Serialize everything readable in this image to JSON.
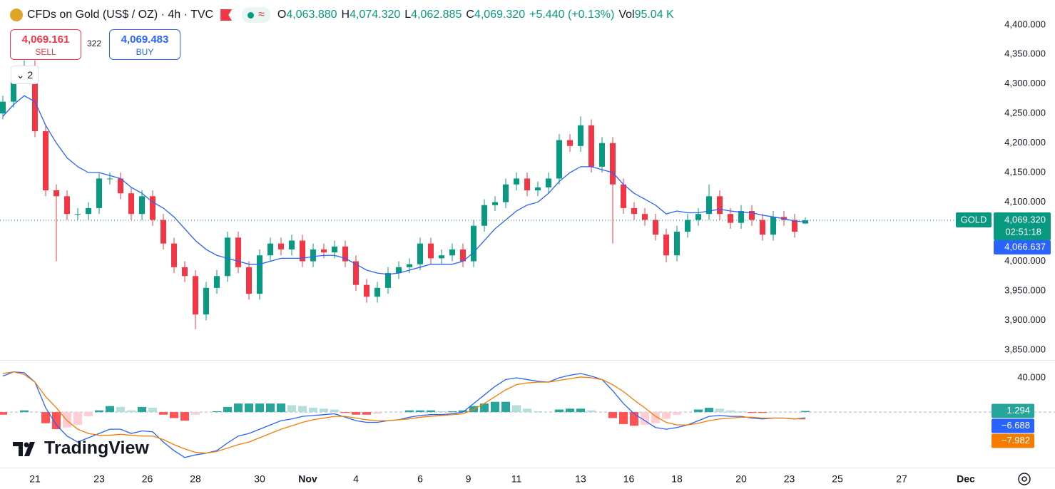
{
  "header": {
    "symbol": "CFDs on Gold (US$ / OZ) · 4h · TVC",
    "ohlc": [
      {
        "key": "O",
        "value": "4,063.880"
      },
      {
        "key": "H",
        "value": "4,074.320"
      },
      {
        "key": "L",
        "value": "4,062.885"
      },
      {
        "key": "C",
        "value": "4,069.320"
      }
    ],
    "change": "+5.440 (+0.13%)",
    "volume": {
      "key": "Vol",
      "value": "95.04 K"
    }
  },
  "trade": {
    "sell_price": "4,069.161",
    "sell": "SELL",
    "spread": "322",
    "buy_price": "4,069.483",
    "buy": "BUY"
  },
  "indicator_toggle": "2",
  "logo": "TradingView",
  "chart_data": [
    {
      "type": "candlestick",
      "x": [
        0,
        2,
        4,
        6,
        8,
        10,
        12,
        14,
        16,
        18,
        20,
        22,
        24,
        26,
        28,
        30,
        32,
        34,
        36,
        38,
        40,
        42,
        44,
        46,
        48,
        50,
        52,
        54,
        56,
        58,
        60,
        62,
        64,
        66,
        68,
        70,
        72,
        74,
        76,
        78,
        80,
        82,
        84,
        86,
        88,
        90,
        92,
        94,
        96,
        98,
        100,
        102,
        104,
        106,
        108,
        110,
        112,
        114,
        116,
        118,
        120,
        122,
        124,
        126,
        128,
        130,
        132,
        134,
        136,
        138,
        140,
        142,
        144,
        146,
        148,
        150
      ],
      "open": [
        4250,
        4270,
        4320,
        4330,
        4220,
        4120,
        4110,
        4080,
        4080,
        4090,
        4140,
        4140,
        4115,
        4080,
        4110,
        4070,
        4030,
        3990,
        3975,
        3910,
        3955,
        3975,
        4040,
        3990,
        3945,
        4010,
        4030,
        4020,
        4035,
        4000,
        4020,
        4015,
        4025,
        4000,
        3960,
        3940,
        3955,
        3980,
        3990,
        3995,
        4030,
        4005,
        4010,
        4020,
        4000,
        4060,
        4095,
        4100,
        4130,
        4140,
        4120,
        4125,
        4140,
        4205,
        4195,
        4230,
        4160,
        4200,
        4130,
        4090,
        4080,
        4070,
        4045,
        4010,
        4050,
        4070,
        4080,
        4110,
        4080,
        4065,
        4085,
        4070,
        4045,
        4075,
        4070,
        4063.88
      ],
      "high": [
        4280,
        4330,
        4340,
        4340,
        4230,
        4130,
        4120,
        4090,
        4100,
        4150,
        4150,
        4150,
        4125,
        4120,
        4120,
        4080,
        4040,
        4000,
        3985,
        3965,
        3985,
        4050,
        4050,
        4000,
        4020,
        4040,
        4040,
        4045,
        4045,
        4030,
        4030,
        4035,
        4035,
        4010,
        3970,
        3965,
        3990,
        4000,
        4005,
        4040,
        4040,
        4020,
        4030,
        4030,
        4070,
        4105,
        4110,
        4140,
        4150,
        4150,
        4135,
        4150,
        4215,
        4215,
        4245,
        4240,
        4210,
        4210,
        4140,
        4100,
        4090,
        4080,
        4055,
        4060,
        4080,
        4090,
        4130,
        4120,
        4090,
        4095,
        4095,
        4080,
        4085,
        4085,
        4080,
        4074.32
      ],
      "low": [
        4240,
        4260,
        4310,
        4210,
        4110,
        4000,
        4070,
        4070,
        4070,
        4080,
        4130,
        4105,
        4070,
        4070,
        4060,
        4020,
        3980,
        3965,
        3885,
        3900,
        3945,
        3965,
        3980,
        3935,
        3935,
        4000,
        4010,
        4010,
        3990,
        3990,
        4005,
        4005,
        3990,
        3950,
        3930,
        3930,
        3945,
        3970,
        3980,
        3985,
        3995,
        3995,
        4000,
        3990,
        3990,
        4050,
        4085,
        4090,
        4120,
        4110,
        4110,
        4115,
        4130,
        4185,
        4185,
        4150,
        4150,
        4030,
        4080,
        4070,
        4060,
        4035,
        3998,
        4000,
        4040,
        4060,
        4070,
        4070,
        4055,
        4055,
        4060,
        4035,
        4035,
        4060,
        4040,
        4062.885
      ],
      "close": [
        4270,
        4320,
        4330,
        4220,
        4120,
        4110,
        4080,
        4080,
        4090,
        4140,
        4140,
        4115,
        4080,
        4110,
        4070,
        4030,
        3990,
        3975,
        3910,
        3955,
        3975,
        4040,
        3990,
        3945,
        4010,
        4030,
        4020,
        4035,
        4000,
        4020,
        4015,
        4025,
        4000,
        3960,
        3940,
        3955,
        3980,
        3990,
        3995,
        4030,
        4005,
        4010,
        4020,
        4000,
        4060,
        4095,
        4100,
        4130,
        4140,
        4120,
        4125,
        4140,
        4205,
        4195,
        4230,
        4160,
        4200,
        4130,
        4090,
        4080,
        4070,
        4045,
        4010,
        4050,
        4070,
        4080,
        4110,
        4080,
        4065,
        4085,
        4070,
        4045,
        4075,
        4070,
        4050,
        4069.32
      ],
      "up_color": "#089981",
      "down_color": "#f23645",
      "ma": {
        "color": "#2962ff",
        "values": [
          4245,
          4265,
          4280,
          4270,
          4230,
          4200,
          4175,
          4160,
          4150,
          4150,
          4145,
          4140,
          4125,
          4115,
          4100,
          4090,
          4075,
          4055,
          4035,
          4020,
          4010,
          4005,
          4000,
          3995,
          3995,
          4000,
          4005,
          4005,
          4005,
          4008,
          4010,
          4010,
          4005,
          3995,
          3985,
          3980,
          3978,
          3980,
          3985,
          3990,
          3995,
          3995,
          3995,
          4000,
          4015,
          4035,
          4055,
          4070,
          4085,
          4095,
          4100,
          4115,
          4135,
          4150,
          4160,
          4160,
          4155,
          4150,
          4130,
          4115,
          4105,
          4095,
          4080,
          4085,
          4082,
          4082,
          4085,
          4088,
          4085,
          4083,
          4082,
          4078,
          4075,
          4072,
          4068,
          4066.637
        ],
        "last_label": "4,066.637"
      },
      "last_price": {
        "value": 4069.32,
        "label": "4,069.320",
        "symbol": "GOLD",
        "countdown": "02:51:18"
      },
      "xlim": [
        0,
        184
      ],
      "xticks": [
        {
          "value": 6,
          "label": "21"
        },
        {
          "value": 18,
          "label": "23"
        },
        {
          "value": 27,
          "label": "26"
        },
        {
          "value": 36,
          "label": "28"
        },
        {
          "value": 48,
          "label": "30"
        },
        {
          "value": 57,
          "label": "Nov"
        },
        {
          "value": 66,
          "label": "4"
        },
        {
          "value": 78,
          "label": "6"
        },
        {
          "value": 87,
          "label": "9"
        },
        {
          "value": 96,
          "label": "11"
        },
        {
          "value": 108,
          "label": "13"
        },
        {
          "value": 117,
          "label": "16"
        },
        {
          "value": 126,
          "label": "18"
        },
        {
          "value": 138,
          "label": "20"
        },
        {
          "value": 147,
          "label": "23"
        },
        {
          "value": 156,
          "label": "25"
        },
        {
          "value": 168,
          "label": "27"
        },
        {
          "value": 180,
          "label": "Dec"
        }
      ],
      "ylim": [
        3833,
        4442
      ],
      "yticks": [
        {
          "value": 4400,
          "label": "4,400.000"
        },
        {
          "value": 4350,
          "label": "4,350.000"
        },
        {
          "value": 4300,
          "label": "4,300.000"
        },
        {
          "value": 4250,
          "label": "4,250.000"
        },
        {
          "value": 4200,
          "label": "4,200.000"
        },
        {
          "value": 4150,
          "label": "4,150.000"
        },
        {
          "value": 4100,
          "label": "4,100.000"
        },
        {
          "value": 4050,
          "label": "4,050.000"
        },
        {
          "value": 4000,
          "label": "4,000.000"
        },
        {
          "value": 3950,
          "label": "3,950.000"
        },
        {
          "value": 3900,
          "label": "3,900.000"
        },
        {
          "value": 3850,
          "label": "3,850.000"
        }
      ]
    },
    {
      "type": "macd",
      "x": [
        0,
        2,
        4,
        6,
        8,
        10,
        12,
        14,
        16,
        18,
        20,
        22,
        24,
        26,
        28,
        30,
        32,
        34,
        36,
        38,
        40,
        42,
        44,
        46,
        48,
        50,
        52,
        54,
        56,
        58,
        60,
        62,
        64,
        66,
        68,
        70,
        72,
        74,
        76,
        78,
        80,
        82,
        84,
        86,
        88,
        90,
        92,
        94,
        96,
        98,
        100,
        102,
        104,
        106,
        108,
        110,
        112,
        114,
        116,
        118,
        120,
        122,
        124,
        126,
        128,
        130,
        132,
        134,
        136,
        138,
        140,
        142,
        144,
        146,
        148,
        150
      ],
      "histogram": {
        "values": [
          -3,
          0,
          2,
          0,
          -13,
          -20,
          -18,
          -15,
          -5,
          2,
          7,
          6,
          2,
          6,
          5,
          -3,
          -7,
          -10,
          -3,
          0,
          1,
          6,
          10,
          10,
          10,
          10,
          10,
          8,
          7,
          5,
          4,
          3,
          -1,
          -3,
          -3,
          -2,
          0,
          0,
          2,
          2,
          2,
          1,
          1,
          2,
          7,
          10,
          12,
          12,
          8,
          4,
          1,
          0,
          3,
          4,
          4,
          2,
          0,
          -7,
          -14,
          -16,
          -15,
          -13,
          -8,
          -3,
          0,
          3,
          5,
          4,
          2,
          1,
          -1,
          -1,
          0,
          0,
          0,
          1.294
        ],
        "colors": {
          "pos_rising": "#26a69a",
          "pos_falling": "#b2dfdb",
          "neg_falling": "#ff5252",
          "neg_rising": "#ffcdd2"
        },
        "last_label": "1.294"
      },
      "macd": {
        "color": "#2962ff",
        "values": [
          42,
          47,
          46,
          35,
          5,
          -15,
          -28,
          -35,
          -30,
          -25,
          -20,
          -20,
          -25,
          -22,
          -23,
          -35,
          -45,
          -53,
          -50,
          -48,
          -45,
          -36,
          -28,
          -25,
          -20,
          -15,
          -10,
          -8,
          -5,
          -4,
          -3,
          -2,
          -6,
          -10,
          -12,
          -12,
          -10,
          -9,
          -6,
          -4,
          -3,
          -3,
          -2,
          0,
          10,
          20,
          30,
          38,
          40,
          38,
          36,
          35,
          40,
          43,
          45,
          42,
          38,
          25,
          10,
          -2,
          -10,
          -18,
          -20,
          -18,
          -15,
          -10,
          -5,
          -4,
          -5,
          -5,
          -7,
          -8,
          -7,
          -7,
          -8,
          -6.688
        ],
        "last_label": "−6.688"
      },
      "signal": {
        "color": "#f57c00",
        "values": [
          45,
          47,
          44,
          35,
          18,
          5,
          -10,
          -20,
          -25,
          -27,
          -27,
          -26,
          -27,
          -28,
          -28,
          -32,
          -38,
          -43,
          -47,
          -48,
          -46,
          -42,
          -38,
          -35,
          -30,
          -25,
          -20,
          -16,
          -12,
          -9,
          -7,
          -5,
          -5,
          -7,
          -9,
          -10,
          -10,
          -9,
          -8,
          -6,
          -5,
          -4,
          -3,
          -2,
          3,
          10,
          18,
          26,
          32,
          34,
          35,
          35,
          37,
          39,
          41,
          40,
          38,
          32,
          24,
          14,
          5,
          -5,
          -12,
          -15,
          -15,
          -13,
          -10,
          -8,
          -7,
          -6,
          -6,
          -7,
          -7,
          -7,
          -8,
          -7.982
        ],
        "last_label": "−7.982"
      },
      "xlim": [
        0,
        184
      ],
      "ylim": [
        -64,
        60
      ],
      "yticks": [
        {
          "value": 40,
          "label": "40.000"
        }
      ]
    }
  ]
}
